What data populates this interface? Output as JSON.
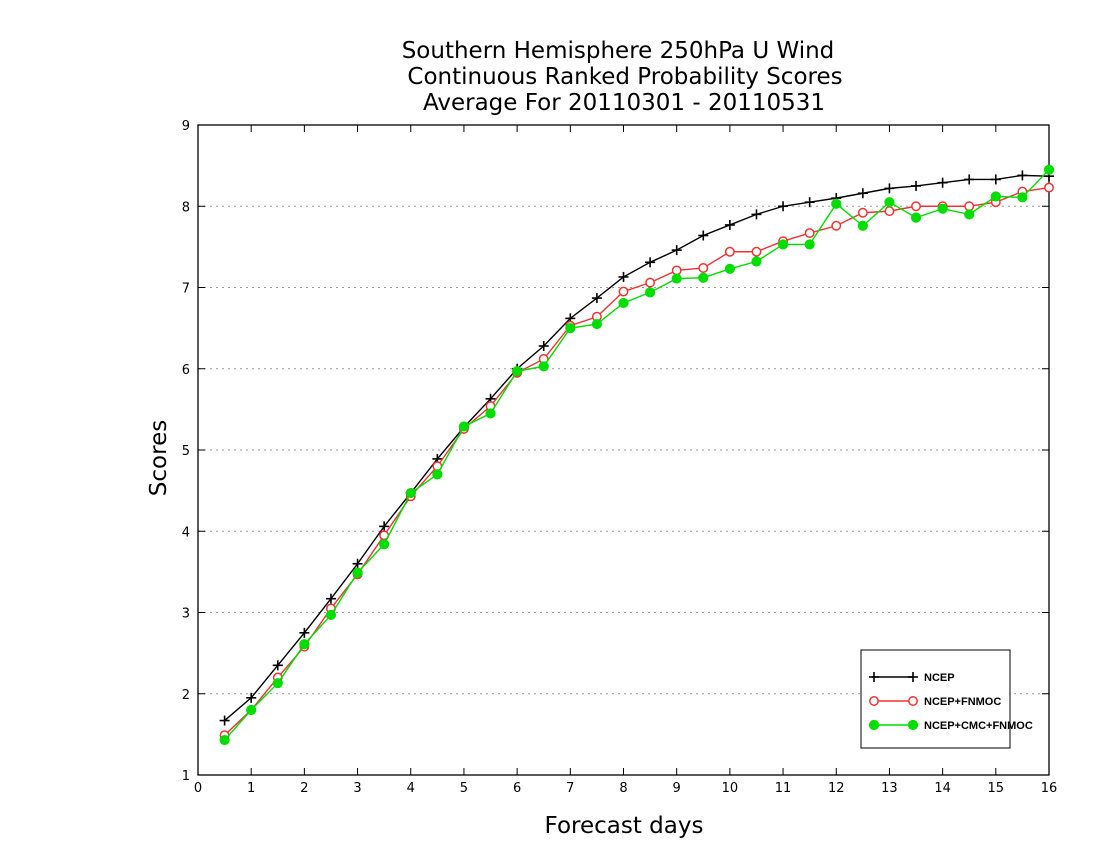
{
  "chart_data": {
    "type": "line",
    "title": [
      "Southern Hemisphere 250hPa U Wind",
      "Continuous Ranked Probability Scores",
      "Average For 20110301 - 20110531"
    ],
    "xlabel": "Forecast days",
    "ylabel": "Scores",
    "xlim": [
      0,
      16
    ],
    "ylim": [
      1,
      9
    ],
    "xticks": [
      0,
      1,
      2,
      3,
      4,
      5,
      6,
      7,
      8,
      9,
      10,
      11,
      12,
      13,
      14,
      15,
      16
    ],
    "yticks": [
      1,
      2,
      3,
      4,
      5,
      6,
      7,
      8,
      9
    ],
    "grid": "horizontal dotted",
    "legend_position": "bottom-right",
    "x": [
      0.5,
      1,
      1.5,
      2,
      2.5,
      3,
      3.5,
      4,
      4.5,
      5,
      5.5,
      6,
      6.5,
      7,
      7.5,
      8,
      8.5,
      9,
      9.5,
      10,
      10.5,
      11,
      11.5,
      12,
      12.5,
      13,
      13.5,
      14,
      14.5,
      15,
      15.5,
      16
    ],
    "series": [
      {
        "name": "NCEP",
        "color": "#000000",
        "marker": "plus",
        "values": [
          1.67,
          1.95,
          2.35,
          2.75,
          3.17,
          3.6,
          4.06,
          4.47,
          4.89,
          5.28,
          5.63,
          6.0,
          6.28,
          6.62,
          6.87,
          7.13,
          7.31,
          7.46,
          7.64,
          7.77,
          7.9,
          8.0,
          8.05,
          8.1,
          8.16,
          8.22,
          8.25,
          8.29,
          8.33,
          8.33,
          8.38,
          8.37
        ]
      },
      {
        "name": "NCEP+FNMOC",
        "color": "#ee3333",
        "marker": "open-circle",
        "values": [
          1.49,
          1.8,
          2.2,
          2.58,
          3.05,
          3.47,
          3.95,
          4.43,
          4.8,
          5.26,
          5.54,
          5.95,
          6.12,
          6.53,
          6.64,
          6.95,
          7.06,
          7.21,
          7.24,
          7.44,
          7.44,
          7.57,
          7.67,
          7.76,
          7.92,
          7.94,
          8.0,
          8.0,
          8.0,
          8.05,
          8.18,
          8.23
        ]
      },
      {
        "name": "NCEP+CMC+FNMOC",
        "color": "#00dd00",
        "marker": "filled-circle",
        "values": [
          1.43,
          1.8,
          2.13,
          2.61,
          2.97,
          3.49,
          3.84,
          4.47,
          4.7,
          5.29,
          5.45,
          5.97,
          6.03,
          6.5,
          6.55,
          6.81,
          6.94,
          7.11,
          7.12,
          7.23,
          7.32,
          7.53,
          7.53,
          8.03,
          7.76,
          8.05,
          7.86,
          7.97,
          7.9,
          8.12,
          8.11,
          8.45
        ]
      }
    ]
  }
}
